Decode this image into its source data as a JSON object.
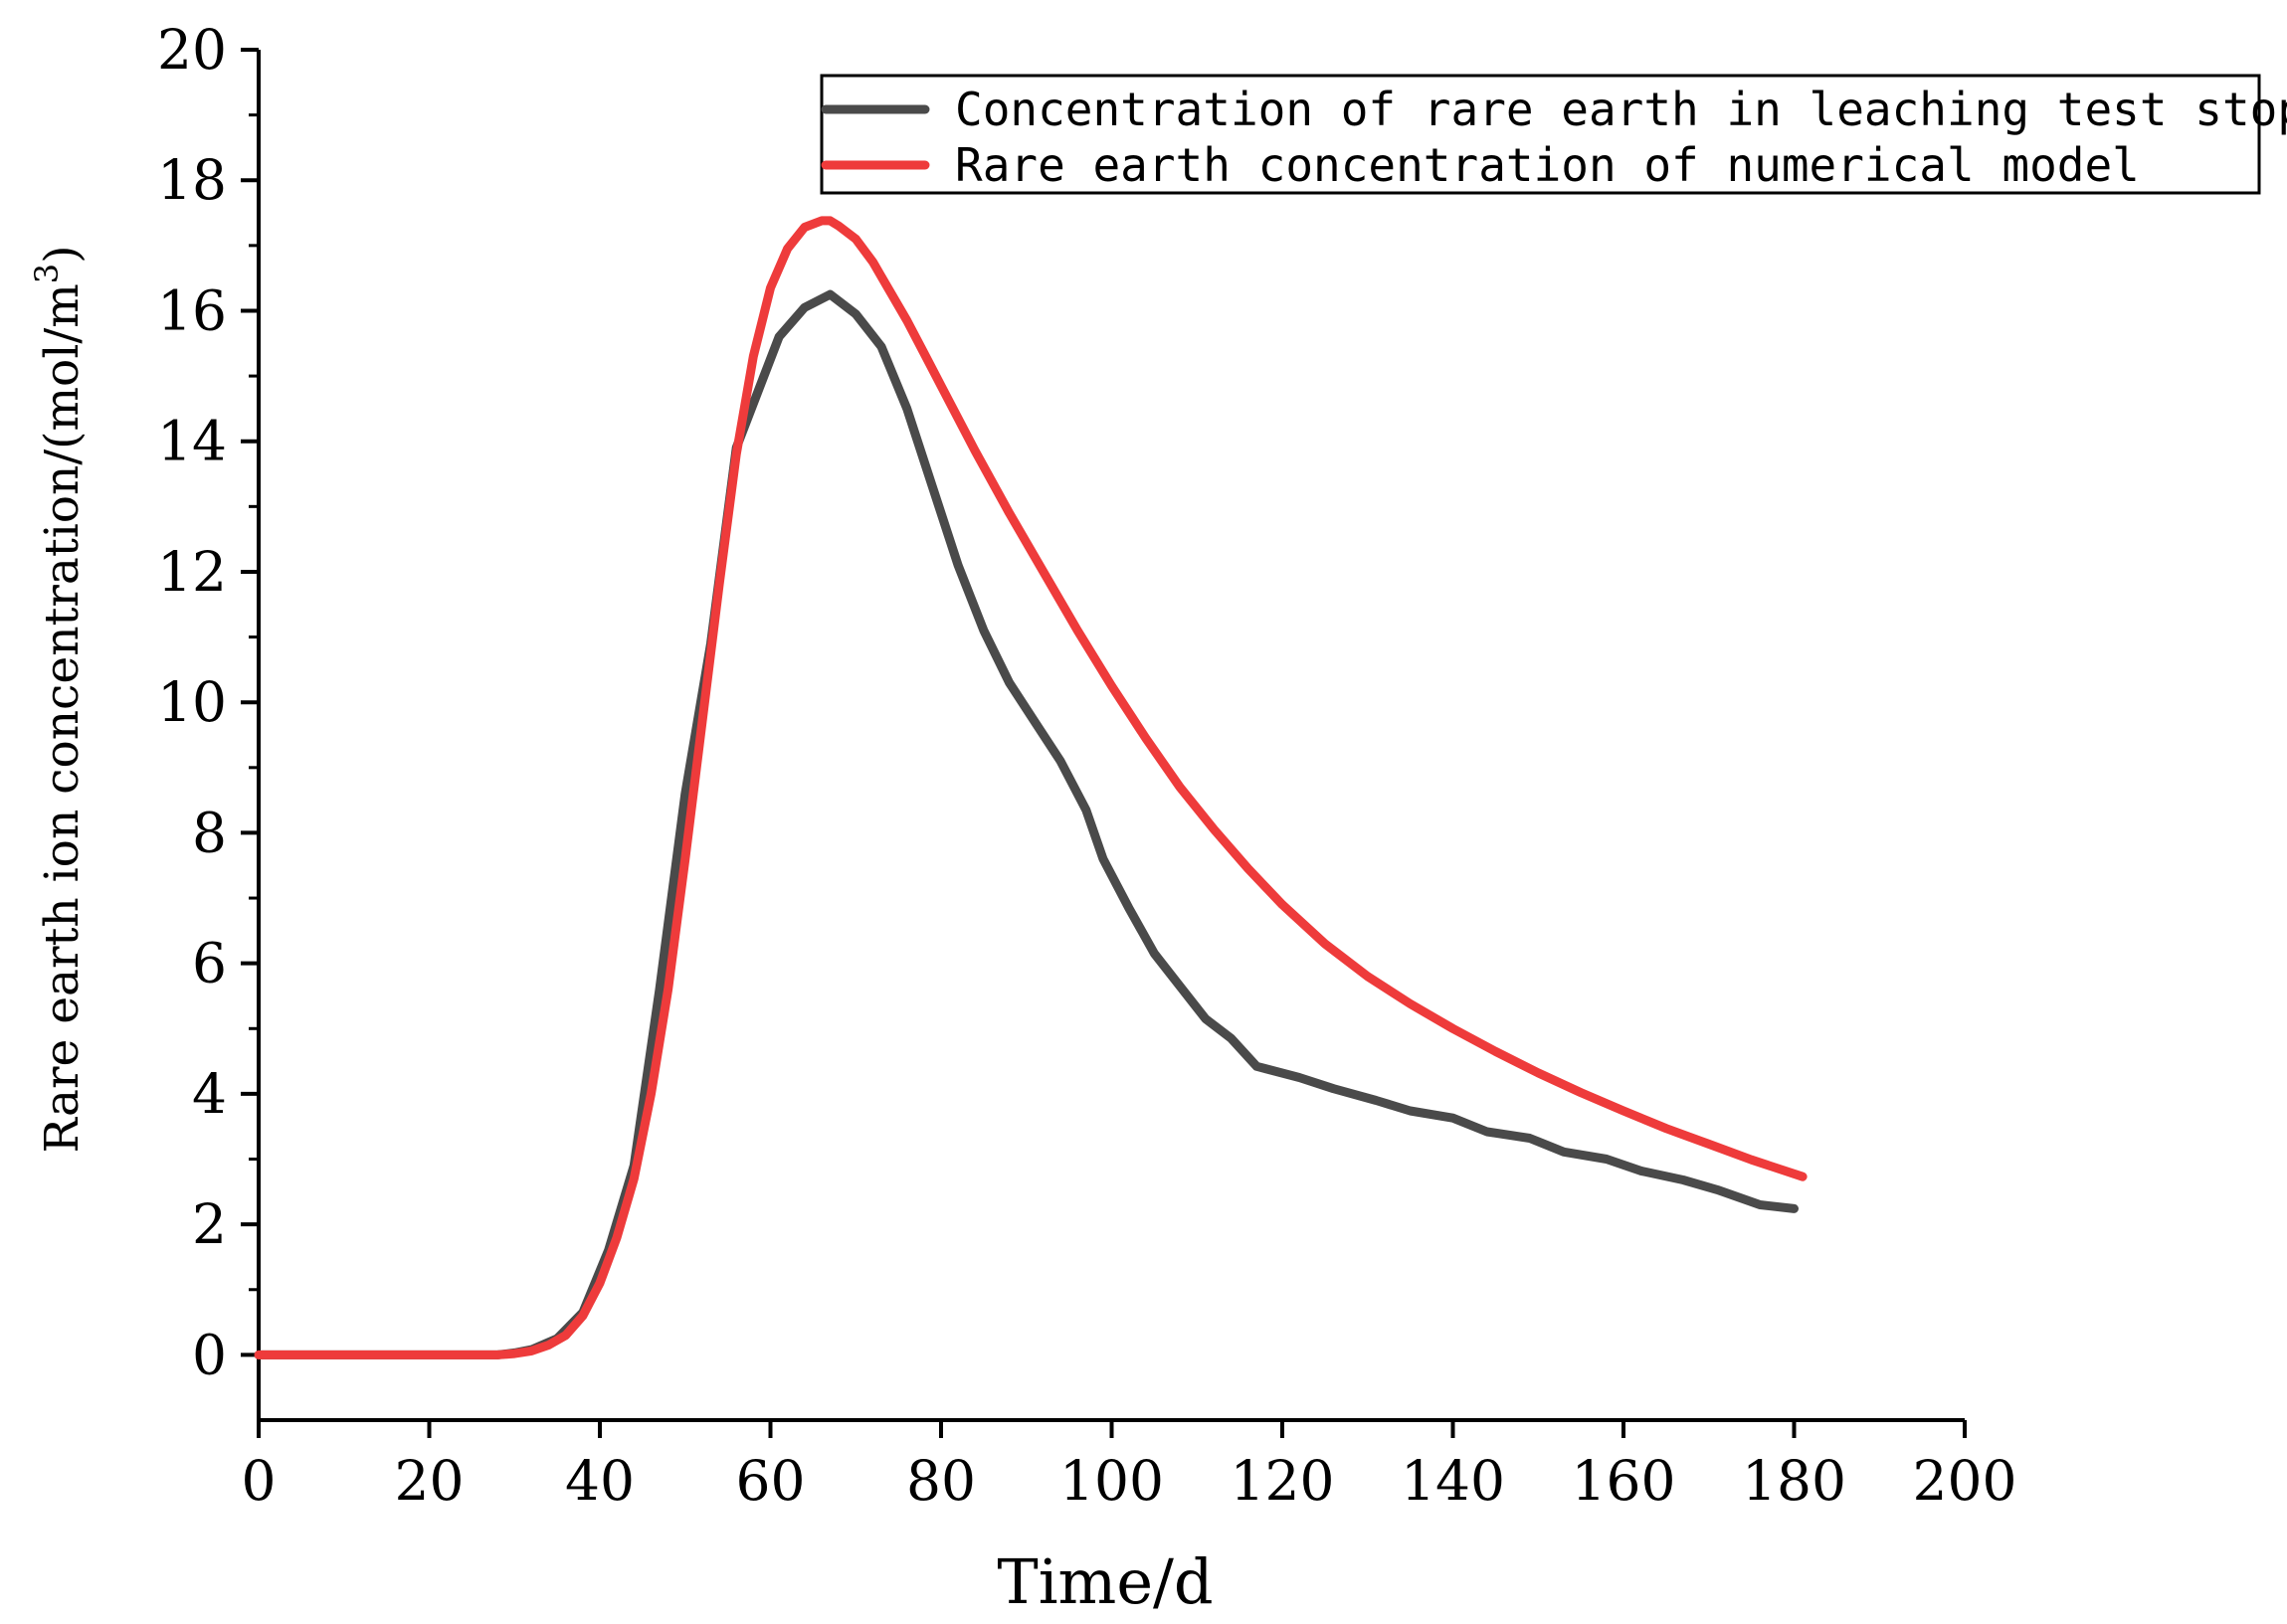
{
  "chart_data": {
    "type": "line",
    "title": "",
    "xlabel": "Time/d",
    "ylabel": "Rare earth ion concentration/(mol/m",
    "ylabel_superscript": "3",
    "ylabel_suffix": ")",
    "xlim": [
      0,
      200
    ],
    "ylim": [
      -1,
      20
    ],
    "xticks": [
      0,
      20,
      40,
      60,
      80,
      100,
      120,
      140,
      160,
      180,
      200
    ],
    "yticks": [
      0,
      2,
      4,
      6,
      8,
      10,
      12,
      14,
      16,
      18,
      20
    ],
    "grid": false,
    "legend_position": "top-right",
    "series": [
      {
        "name": "Concentration of rare earth in leaching test stope",
        "color": "#4a4a4a",
        "x": [
          0,
          5,
          10,
          15,
          20,
          25,
          28,
          30,
          32,
          35,
          38,
          41,
          44,
          47,
          50,
          53,
          56,
          61,
          64,
          67,
          70,
          73,
          76,
          79,
          82,
          85,
          88,
          91,
          94,
          97,
          99,
          102,
          105,
          108,
          111,
          114,
          117,
          122,
          126,
          131,
          135,
          140,
          144,
          149,
          153,
          158,
          162,
          167,
          171,
          176,
          180
        ],
        "y": [
          0,
          0,
          0,
          0,
          0,
          0,
          0,
          0.03,
          0.08,
          0.25,
          0.65,
          1.6,
          2.9,
          5.6,
          8.6,
          10.9,
          13.9,
          15.6,
          16.05,
          16.25,
          15.95,
          15.45,
          14.5,
          13.3,
          12.1,
          11.1,
          10.3,
          9.7,
          9.1,
          8.35,
          7.6,
          6.85,
          6.15,
          5.65,
          5.15,
          4.85,
          4.42,
          4.25,
          4.08,
          3.9,
          3.74,
          3.63,
          3.42,
          3.32,
          3.11,
          3.0,
          2.82,
          2.68,
          2.53,
          2.3,
          2.24
        ]
      },
      {
        "name": "Rare earth concentration of numerical model",
        "color": "#ee3b3b",
        "x": [
          0,
          5,
          10,
          15,
          20,
          25,
          28,
          30,
          32,
          34,
          36,
          38,
          40,
          42,
          44,
          46,
          48,
          50,
          52,
          54,
          56,
          58,
          60,
          62,
          64,
          66,
          67,
          68,
          70,
          72,
          74,
          76,
          78,
          80,
          84,
          88,
          92,
          96,
          100,
          104,
          108,
          112,
          116,
          120,
          125,
          130,
          135,
          140,
          145,
          150,
          155,
          160,
          165,
          170,
          175,
          181
        ],
        "y": [
          0,
          0,
          0,
          0,
          0,
          0,
          0,
          0.02,
          0.06,
          0.15,
          0.3,
          0.6,
          1.1,
          1.8,
          2.7,
          4.0,
          5.6,
          7.6,
          9.7,
          11.8,
          13.8,
          15.3,
          16.35,
          16.95,
          17.28,
          17.38,
          17.38,
          17.3,
          17.1,
          16.75,
          16.3,
          15.85,
          15.35,
          14.85,
          13.85,
          12.9,
          12.0,
          11.1,
          10.25,
          9.45,
          8.7,
          8.05,
          7.45,
          6.9,
          6.3,
          5.8,
          5.38,
          5.0,
          4.65,
          4.32,
          4.02,
          3.74,
          3.47,
          3.23,
          2.99,
          2.73
        ]
      }
    ]
  }
}
